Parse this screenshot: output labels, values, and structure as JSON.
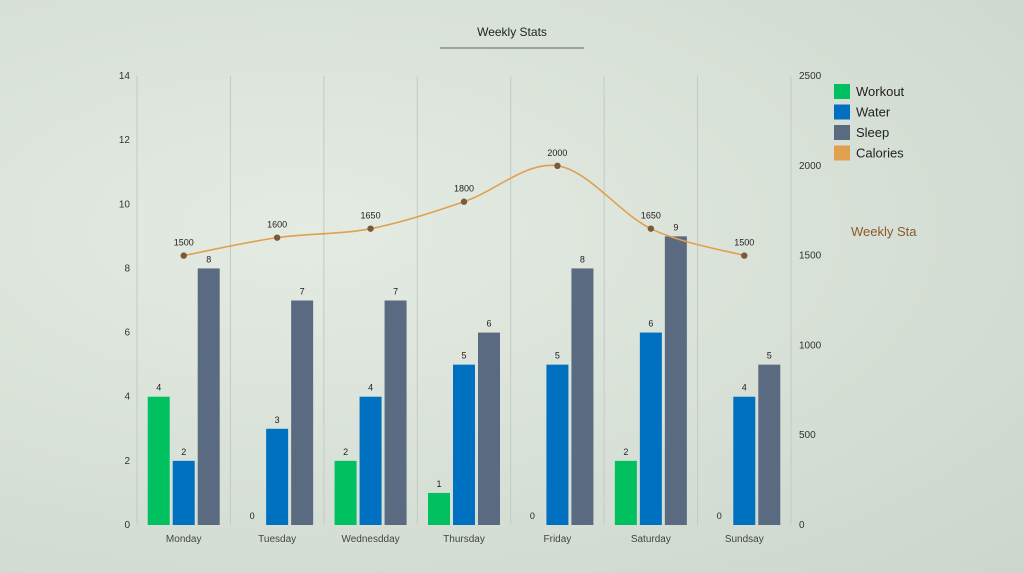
{
  "chart_data": {
    "type": "bar",
    "title": "Weekly Stats",
    "side_title": "Weekly Sta",
    "categories": [
      "Monday",
      "Tuesday",
      "Wednesdday",
      "Thursday",
      "Friday",
      "Saturday",
      "Sundsay"
    ],
    "series": [
      {
        "name": "Workout",
        "type": "bar",
        "axis": "left",
        "color": "#00c060",
        "values": [
          4,
          0,
          2,
          1,
          0,
          2,
          0
        ]
      },
      {
        "name": "Water",
        "type": "bar",
        "axis": "left",
        "color": "#0070c0",
        "values": [
          2,
          3,
          4,
          5,
          5,
          6,
          4
        ]
      },
      {
        "name": "Sleep",
        "type": "bar",
        "axis": "left",
        "color": "#5a6a80",
        "values": [
          8,
          7,
          7,
          6,
          8,
          9,
          5
        ]
      },
      {
        "name": "Calories",
        "type": "line",
        "axis": "right",
        "color": "#e0a050",
        "marker_color": "#7a5a3a",
        "values": [
          1500,
          1600,
          1650,
          1800,
          2000,
          1650,
          1500
        ]
      }
    ],
    "y_left": {
      "range": [
        0,
        14
      ],
      "ticks": [
        "0",
        "2",
        "4",
        "6",
        "8",
        "10",
        "12",
        "14"
      ]
    },
    "y_right": {
      "range": [
        0,
        2500
      ],
      "ticks": [
        "0",
        "500",
        "1000",
        "1500",
        "2000",
        "2500"
      ]
    },
    "legend": {
      "position": "top-right"
    },
    "grid": {
      "vertical": true,
      "horizontal": false
    }
  }
}
